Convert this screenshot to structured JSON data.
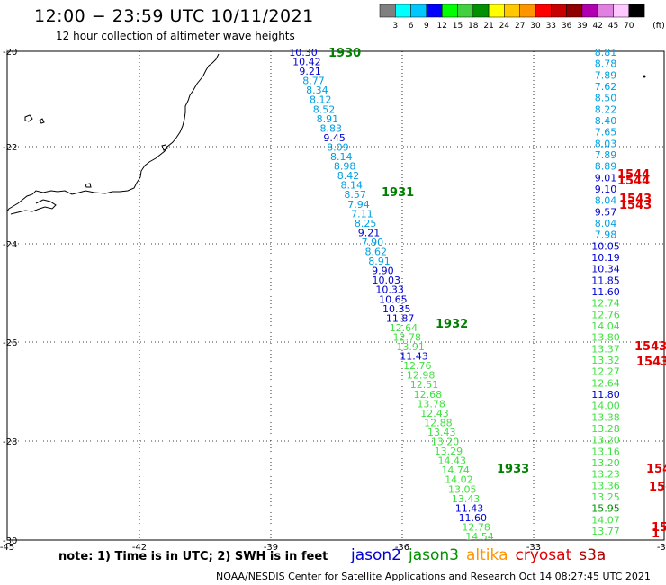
{
  "header": {
    "title": "12:00 − 23:59 UTC 10/11/2021",
    "subtitle": "12 hour collection of altimeter wave heights"
  },
  "colorbar": {
    "unit": "(ft)",
    "colors": [
      "#808080",
      "#00ffff",
      "#00c8ff",
      "#0000ff",
      "#00ff00",
      "#40d040",
      "#009000",
      "#ffff00",
      "#ffc800",
      "#ff9600",
      "#ff0000",
      "#c80000",
      "#900000",
      "#b000b0",
      "#e080e0",
      "#ffc8ff",
      "#000000"
    ],
    "labels": [
      "3",
      "6",
      "9",
      "12",
      "15",
      "18",
      "21",
      "24",
      "27",
      "30",
      "33",
      "36",
      "39",
      "42",
      "45",
      "70"
    ]
  },
  "axes": {
    "lon_labels": [
      "-45",
      "-42",
      "-39",
      "-36",
      "-33",
      "-30"
    ],
    "lat_labels": [
      "-20",
      "-22",
      "-24",
      "-26",
      "-28",
      "-30"
    ]
  },
  "tracks": [
    {
      "satellite": "jason3",
      "color_label": "#008000",
      "times": [
        {
          "label": "1930"
        },
        {
          "label": "1931"
        },
        {
          "label": "1932"
        },
        {
          "label": "1933"
        }
      ],
      "values": [
        {
          "v": "10.30",
          "c": "#0000d0"
        },
        {
          "v": "10.42",
          "c": "#0000d0"
        },
        {
          "v": "9.21",
          "c": "#0000d0"
        },
        {
          "v": "8.77",
          "c": "#00a0e0"
        },
        {
          "v": "8.34",
          "c": "#00a0e0"
        },
        {
          "v": "8.12",
          "c": "#00a0e0"
        },
        {
          "v": "8.52",
          "c": "#00a0e0"
        },
        {
          "v": "8.91",
          "c": "#00a0e0"
        },
        {
          "v": "8.83",
          "c": "#00a0e0"
        },
        {
          "v": "9.45",
          "c": "#0000d0"
        },
        {
          "v": "8.09",
          "c": "#00a0e0"
        },
        {
          "v": "8.14",
          "c": "#00a0e0"
        },
        {
          "v": "8.98",
          "c": "#00a0e0"
        },
        {
          "v": "8.42",
          "c": "#00a0e0"
        },
        {
          "v": "8.14",
          "c": "#00a0e0"
        },
        {
          "v": "8.57",
          "c": "#00a0e0"
        },
        {
          "v": "7.94",
          "c": "#00a0e0"
        },
        {
          "v": "7.11",
          "c": "#00a0e0"
        },
        {
          "v": "8.25",
          "c": "#00a0e0"
        },
        {
          "v": "9.21",
          "c": "#0000d0"
        },
        {
          "v": "7.90",
          "c": "#00a0e0"
        },
        {
          "v": "8.62",
          "c": "#00a0e0"
        },
        {
          "v": "8.91",
          "c": "#00a0e0"
        },
        {
          "v": "9.90",
          "c": "#0000d0"
        },
        {
          "v": "10.03",
          "c": "#0000d0"
        },
        {
          "v": "10.33",
          "c": "#0000d0"
        },
        {
          "v": "10.65",
          "c": "#0000d0"
        },
        {
          "v": "10.35",
          "c": "#0000d0"
        },
        {
          "v": "11.87",
          "c": "#0000d0"
        },
        {
          "v": "12.64",
          "c": "#40e040"
        },
        {
          "v": "12.78",
          "c": "#40e040"
        },
        {
          "v": "13.91",
          "c": "#40e040"
        },
        {
          "v": "11.43",
          "c": "#0000d0"
        },
        {
          "v": "12.76",
          "c": "#40e040"
        },
        {
          "v": "12.98",
          "c": "#40e040"
        },
        {
          "v": "12.51",
          "c": "#40e040"
        },
        {
          "v": "12.68",
          "c": "#40e040"
        },
        {
          "v": "13.78",
          "c": "#40e040"
        },
        {
          "v": "12.43",
          "c": "#40e040"
        },
        {
          "v": "12.88",
          "c": "#40e040"
        },
        {
          "v": "13.43",
          "c": "#40e040"
        },
        {
          "v": "13.20",
          "c": "#40e040"
        },
        {
          "v": "13.29",
          "c": "#40e040"
        },
        {
          "v": "14.43",
          "c": "#40e040"
        },
        {
          "v": "14.74",
          "c": "#40e040"
        },
        {
          "v": "14.02",
          "c": "#40e040"
        },
        {
          "v": "13.05",
          "c": "#40e040"
        },
        {
          "v": "13.43",
          "c": "#40e040"
        },
        {
          "v": "11.43",
          "c": "#0000d0"
        },
        {
          "v": "11.60",
          "c": "#0000d0"
        },
        {
          "v": "12.78",
          "c": "#40e040"
        },
        {
          "v": "14.54",
          "c": "#40e040"
        }
      ]
    },
    {
      "satellite": "right-column",
      "values": [
        {
          "v": "8.81",
          "c": "#00a0e0"
        },
        {
          "v": "8.78",
          "c": "#00a0e0"
        },
        {
          "v": "7.89",
          "c": "#00a0e0"
        },
        {
          "v": "7.62",
          "c": "#00a0e0"
        },
        {
          "v": "8.50",
          "c": "#00a0e0"
        },
        {
          "v": "8.22",
          "c": "#00a0e0"
        },
        {
          "v": "8.40",
          "c": "#00a0e0"
        },
        {
          "v": "7.65",
          "c": "#00a0e0"
        },
        {
          "v": "8.03",
          "c": "#00a0e0"
        },
        {
          "v": "7.89",
          "c": "#00a0e0"
        },
        {
          "v": "8.89",
          "c": "#00a0e0"
        },
        {
          "v": "9.01",
          "c": "#0000d0"
        },
        {
          "v": "9.10",
          "c": "#0000d0"
        },
        {
          "v": "8.04",
          "c": "#00a0e0"
        },
        {
          "v": "9.57",
          "c": "#0000d0"
        },
        {
          "v": "8.04",
          "c": "#00a0e0"
        },
        {
          "v": "7.98",
          "c": "#00a0e0"
        },
        {
          "v": "10.05",
          "c": "#0000d0"
        },
        {
          "v": "10.19",
          "c": "#0000d0"
        },
        {
          "v": "10.34",
          "c": "#0000d0"
        },
        {
          "v": "11.85",
          "c": "#0000d0"
        },
        {
          "v": "11.60",
          "c": "#0000d0"
        },
        {
          "v": "12.74",
          "c": "#40e040"
        },
        {
          "v": "12.76",
          "c": "#40e040"
        },
        {
          "v": "14.04",
          "c": "#40e040"
        },
        {
          "v": "13.80",
          "c": "#40e040"
        },
        {
          "v": "13.37",
          "c": "#40e040"
        },
        {
          "v": "13.32",
          "c": "#40e040"
        },
        {
          "v": "12.27",
          "c": "#40e040"
        },
        {
          "v": "12.64",
          "c": "#40e040"
        },
        {
          "v": "11.80",
          "c": "#0000d0"
        },
        {
          "v": "14.00",
          "c": "#40e040"
        },
        {
          "v": "13.38",
          "c": "#40e040"
        },
        {
          "v": "13.28",
          "c": "#40e040"
        },
        {
          "v": "13.20",
          "c": "#40e040"
        },
        {
          "v": "13.16",
          "c": "#40e040"
        },
        {
          "v": "13.20",
          "c": "#40e040"
        },
        {
          "v": "13.23",
          "c": "#40e040"
        },
        {
          "v": "13.36",
          "c": "#40e040"
        },
        {
          "v": "13.25",
          "c": "#40e040"
        },
        {
          "v": "15.95",
          "c": "#009000"
        },
        {
          "v": "14.07",
          "c": "#40e040"
        },
        {
          "v": "13.77",
          "c": "#40e040"
        }
      ],
      "time_labels": [
        "1544",
        "1544",
        "1543",
        "1543",
        "1543",
        "1543",
        "154",
        "15-",
        "15",
        "1"
      ]
    }
  ],
  "note": "note: 1) Time is in UTC; 2) SWH is in feet",
  "legend": [
    {
      "name": "jason2",
      "color": "#0000d0"
    },
    {
      "name": "jason3",
      "color": "#009000"
    },
    {
      "name": "altika",
      "color": "#ff9600"
    },
    {
      "name": "cryosat",
      "color": "#e00000"
    },
    {
      "name": "s3a",
      "color": "#b00000"
    }
  ],
  "footer": "NOAA/NESDIS Center for Satellite Applications and Research    Oct 14 08:27:45 UTC 2021"
}
